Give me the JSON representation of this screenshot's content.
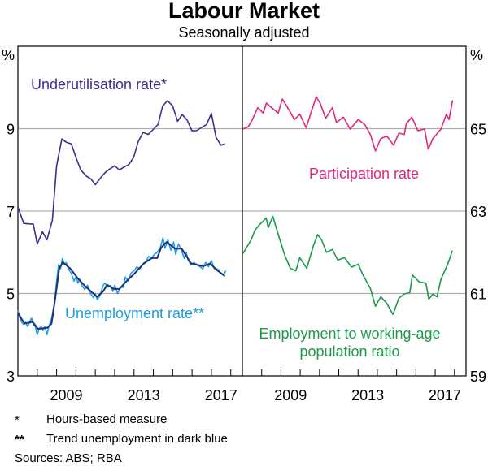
{
  "chart_data": [
    {
      "type": "line",
      "title": "Labour Market",
      "subtitle": "Seasonally adjusted",
      "panel": "left",
      "ylabel": "%",
      "ylim": [
        3,
        11
      ],
      "yticks": [
        3,
        5,
        7,
        9
      ],
      "xlim": [
        2007.0,
        2018.6
      ],
      "xtick_labels": [
        "2009",
        "2013",
        "2017"
      ],
      "grid": true,
      "series": [
        {
          "name": "Underutilisation rate*",
          "label": "Underutilisation rate*",
          "color": "#3b2f8f",
          "x": [
            2007.0,
            2007.3,
            2007.8,
            2008.0,
            2008.27,
            2008.5,
            2008.78,
            2009.0,
            2009.27,
            2009.5,
            2009.76,
            2010.0,
            2010.25,
            2010.53,
            2010.77,
            2011.0,
            2011.26,
            2011.54,
            2011.75,
            2012.0,
            2012.24,
            2012.49,
            2012.73,
            2012.98,
            2013.22,
            2013.47,
            2013.74,
            2013.99,
            2014.24,
            2014.48,
            2014.73,
            2015.0,
            2015.25,
            2015.49,
            2015.74,
            2015.99,
            2016.23,
            2016.5,
            2016.75,
            2017.0,
            2017.24,
            2017.49,
            2017.7
          ],
          "y": [
            7.1,
            6.7,
            6.68,
            6.2,
            6.5,
            6.3,
            6.78,
            8.1,
            8.75,
            8.67,
            8.63,
            8.3,
            8.0,
            7.85,
            7.78,
            7.64,
            7.8,
            7.95,
            8.02,
            8.1,
            8.0,
            8.07,
            8.13,
            8.3,
            8.69,
            8.91,
            8.86,
            8.98,
            9.1,
            9.55,
            9.68,
            9.55,
            9.18,
            9.34,
            9.21,
            8.95,
            8.95,
            9.03,
            9.1,
            9.37,
            8.79,
            8.6,
            8.63
          ]
        },
        {
          "name": "Unemployment rate**",
          "label": "Unemployment rate**",
          "color": "#1e9ee0",
          "x": [
            2007.0,
            2007.1,
            2007.2,
            2007.3,
            2007.4,
            2007.5,
            2007.6,
            2007.7,
            2007.8,
            2007.9,
            2008.0,
            2008.1,
            2008.2,
            2008.3,
            2008.4,
            2008.5,
            2008.6,
            2008.75,
            2008.9,
            2009.0,
            2009.1,
            2009.2,
            2009.3,
            2009.4,
            2009.5,
            2009.6,
            2009.75,
            2009.9,
            2010.0,
            2010.1,
            2010.2,
            2010.3,
            2010.45,
            2010.6,
            2010.75,
            2010.9,
            2011.0,
            2011.1,
            2011.25,
            2011.4,
            2011.5,
            2011.65,
            2011.8,
            2011.9,
            2012.0,
            2012.15,
            2012.3,
            2012.45,
            2012.55,
            2012.7,
            2012.85,
            2013.0,
            2013.15,
            2013.3,
            2013.45,
            2013.6,
            2013.75,
            2013.9,
            2014.05,
            2014.2,
            2014.35,
            2014.5,
            2014.6,
            2014.75,
            2014.9,
            2015.05,
            2015.15,
            2015.3,
            2015.45,
            2015.6,
            2015.7,
            2015.8,
            2015.95,
            2016.1,
            2016.25,
            2016.4,
            2016.55,
            2016.7,
            2016.85,
            2017.0,
            2017.15,
            2017.3,
            2017.45,
            2017.6,
            2017.75
          ],
          "y": [
            4.6,
            4.4,
            4.3,
            4.25,
            4.3,
            4.2,
            4.3,
            4.4,
            4.25,
            4.2,
            4.0,
            4.15,
            4.2,
            4.1,
            4.2,
            4.0,
            4.2,
            4.4,
            4.8,
            5.3,
            5.7,
            5.6,
            5.85,
            5.7,
            5.75,
            5.6,
            5.5,
            5.3,
            5.4,
            5.25,
            5.35,
            5.2,
            5.1,
            5.2,
            5.0,
            4.9,
            5.0,
            4.85,
            4.95,
            5.2,
            5.25,
            5.15,
            5.2,
            5.05,
            5.2,
            5.0,
            5.15,
            5.15,
            5.4,
            5.3,
            5.5,
            5.55,
            5.65,
            5.6,
            5.7,
            5.75,
            5.9,
            5.85,
            5.95,
            6.0,
            6.1,
            6.35,
            6.1,
            6.3,
            6.05,
            6.25,
            5.95,
            6.2,
            6.05,
            5.85,
            6.0,
            5.8,
            5.7,
            5.75,
            5.7,
            5.65,
            5.6,
            5.75,
            5.65,
            5.8,
            5.6,
            5.6,
            5.5,
            5.45,
            5.55
          ]
        },
        {
          "name": "Trend unemployment",
          "color": "#1f2f7c",
          "x": [
            2007.0,
            2007.34,
            2007.76,
            2008.04,
            2008.53,
            2008.74,
            2008.95,
            2009.13,
            2009.32,
            2009.72,
            2010.14,
            2010.56,
            2011.09,
            2011.4,
            2011.61,
            2011.96,
            2012.24,
            2012.59,
            2013.0,
            2013.5,
            2013.92,
            2014.2,
            2014.41,
            2014.69,
            2015.11,
            2015.46,
            2015.95,
            2016.58,
            2016.93,
            2017.28,
            2017.7
          ],
          "y": [
            4.53,
            4.27,
            4.31,
            4.14,
            4.17,
            4.27,
            4.95,
            5.6,
            5.76,
            5.6,
            5.34,
            5.14,
            4.92,
            5.05,
            5.21,
            5.11,
            5.11,
            5.29,
            5.47,
            5.73,
            5.86,
            5.86,
            6.12,
            6.25,
            6.09,
            6.09,
            5.73,
            5.66,
            5.73,
            5.57,
            5.42
          ]
        }
      ]
    },
    {
      "type": "line",
      "panel": "right",
      "ylabel": "%",
      "ylim": [
        59,
        67
      ],
      "yticks": [
        59,
        61,
        63,
        65
      ],
      "xlim": [
        2007.0,
        2018.6
      ],
      "xtick_labels": [
        "2009",
        "2013",
        "2017"
      ],
      "grid": true,
      "series": [
        {
          "name": "Participation rate",
          "label": "Participation rate",
          "color": "#e0267f",
          "x": [
            2007.03,
            2007.31,
            2007.52,
            2007.8,
            2008.08,
            2008.25,
            2008.44,
            2008.86,
            2009.07,
            2009.35,
            2009.7,
            2009.98,
            2010.31,
            2010.55,
            2010.83,
            2011.04,
            2011.32,
            2011.67,
            2011.88,
            2012.24,
            2012.59,
            2013.01,
            2013.36,
            2013.64,
            2013.9,
            2014.18,
            2014.49,
            2014.84,
            2015.12,
            2015.4,
            2015.5,
            2015.79,
            2016.1,
            2016.45,
            2016.64,
            2016.88,
            2017.3,
            2017.58,
            2017.72,
            2017.9
          ],
          "y": [
            64.99,
            65.05,
            65.22,
            65.51,
            65.38,
            65.62,
            65.54,
            65.38,
            65.72,
            65.51,
            65.22,
            65.35,
            65.02,
            65.38,
            65.77,
            65.61,
            65.25,
            65.51,
            65.15,
            65.28,
            64.99,
            65.22,
            65.09,
            64.86,
            64.46,
            64.76,
            64.82,
            64.6,
            64.89,
            64.86,
            65.12,
            65.28,
            64.95,
            64.99,
            64.5,
            64.76,
            64.99,
            65.35,
            65.22,
            65.69
          ]
        },
        {
          "name": "Employment to working-age population ratio",
          "label": [
            "Employment to working-age",
            "population ratio"
          ],
          "color": "#1a9a4a",
          "x": [
            2007.03,
            2007.45,
            2007.66,
            2007.87,
            2008.23,
            2008.34,
            2008.58,
            2008.86,
            2009.21,
            2009.49,
            2009.77,
            2009.98,
            2010.34,
            2010.69,
            2010.9,
            2011.11,
            2011.36,
            2011.67,
            2011.95,
            2012.3,
            2012.66,
            2013.01,
            2013.22,
            2013.64,
            2013.9,
            2014.18,
            2014.49,
            2014.81,
            2015.12,
            2015.4,
            2015.68,
            2015.82,
            2016.17,
            2016.52,
            2016.67,
            2016.88,
            2017.09,
            2017.3,
            2017.65,
            2017.89
          ],
          "y": [
            61.97,
            62.3,
            62.54,
            62.66,
            62.83,
            62.6,
            62.87,
            62.43,
            61.91,
            61.61,
            61.55,
            61.87,
            61.61,
            62.17,
            62.43,
            62.3,
            62.0,
            62.07,
            61.81,
            61.87,
            61.64,
            61.71,
            61.48,
            61.12,
            60.69,
            60.92,
            60.76,
            60.49,
            60.89,
            60.99,
            61.02,
            61.45,
            61.28,
            61.25,
            60.86,
            60.99,
            60.92,
            61.35,
            61.71,
            62.04
          ]
        }
      ]
    }
  ],
  "header": {
    "title": "Labour Market",
    "subtitle": "Seasonally adjusted"
  },
  "axes": {
    "left_unit": "%",
    "right_unit": "%",
    "left_ticks": [
      "3",
      "5",
      "7",
      "9"
    ],
    "right_ticks": [
      "59",
      "61",
      "63",
      "65"
    ],
    "x_ticks": [
      "2009",
      "2013",
      "2017"
    ]
  },
  "footnotes": [
    {
      "mark": "*",
      "text": "Hours-based measure"
    },
    {
      "mark": "**",
      "text": "Trend unemployment in dark blue"
    }
  ],
  "sources": "Sources: ABS; RBA"
}
